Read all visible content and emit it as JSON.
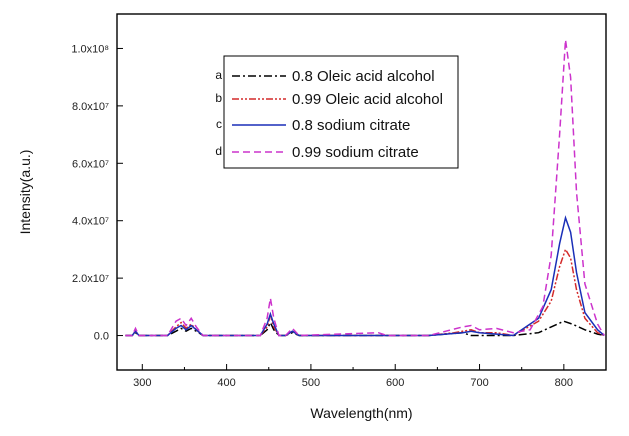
{
  "chart_data": {
    "type": "line",
    "title": "",
    "xlabel": "Wavelength(nm)",
    "ylabel": "Intensity(a.u.)",
    "xlim": [
      270,
      850
    ],
    "ylim": [
      -12000000.0,
      112000000.0
    ],
    "xticks": [
      300,
      400,
      500,
      600,
      700,
      800
    ],
    "yticks": [
      {
        "value": 0,
        "label": "0.0"
      },
      {
        "value": 20000000.0,
        "label": "2.0x10⁷"
      },
      {
        "value": 40000000.0,
        "label": "4.0x10⁷"
      },
      {
        "value": 60000000.0,
        "label": "6.0x10⁷"
      },
      {
        "value": 80000000.0,
        "label": "8.0x10⁷"
      },
      {
        "value": 100000000.0,
        "label": "1.0x10⁸"
      }
    ],
    "legend_position": "top-center",
    "series": [
      {
        "id": "a",
        "name": "0.8 Oleic acid alcohol",
        "color": "#000000",
        "dash": "dashdot",
        "points": [
          [
            280,
            0
          ],
          [
            288,
            0
          ],
          [
            292,
            1000000.0
          ],
          [
            296,
            0
          ],
          [
            330,
            0
          ],
          [
            340,
            1500000.0
          ],
          [
            346,
            2500000.0
          ],
          [
            352,
            1500000.0
          ],
          [
            358,
            2500000.0
          ],
          [
            364,
            1500000.0
          ],
          [
            372,
            0
          ],
          [
            440,
            0
          ],
          [
            448,
            2000000.0
          ],
          [
            452,
            4500000.0
          ],
          [
            456,
            2000000.0
          ],
          [
            462,
            0
          ],
          [
            470,
            0
          ],
          [
            478,
            1000000.0
          ],
          [
            486,
            0
          ],
          [
            580,
            0
          ],
          [
            640,
            0
          ],
          [
            680,
            1000000.0
          ],
          [
            690,
            0
          ],
          [
            740,
            0
          ],
          [
            770,
            1000000.0
          ],
          [
            785,
            3000000.0
          ],
          [
            800,
            5000000.0
          ],
          [
            810,
            4000000.0
          ],
          [
            825,
            2000000.0
          ],
          [
            840,
            500000.0
          ],
          [
            848,
            0
          ]
        ]
      },
      {
        "id": "b",
        "name": "0.99 Oleic acid alcohol",
        "color": "#d42a2a",
        "dash": "dashdotdot",
        "points": [
          [
            280,
            0
          ],
          [
            288,
            0
          ],
          [
            292,
            1500000.0
          ],
          [
            296,
            0
          ],
          [
            330,
            0
          ],
          [
            340,
            3000000.0
          ],
          [
            346,
            4500000.0
          ],
          [
            352,
            2500000.0
          ],
          [
            358,
            4000000.0
          ],
          [
            364,
            2000000.0
          ],
          [
            372,
            0
          ],
          [
            440,
            0
          ],
          [
            448,
            3000000.0
          ],
          [
            452,
            7000000.0
          ],
          [
            456,
            3000000.0
          ],
          [
            462,
            0
          ],
          [
            470,
            0
          ],
          [
            478,
            1500000.0
          ],
          [
            486,
            0
          ],
          [
            580,
            0
          ],
          [
            640,
            0
          ],
          [
            670,
            1000000.0
          ],
          [
            690,
            2000000.0
          ],
          [
            700,
            1000000.0
          ],
          [
            720,
            1000000.0
          ],
          [
            740,
            0
          ],
          [
            770,
            5000000.0
          ],
          [
            785,
            12000000.0
          ],
          [
            795,
            24000000.0
          ],
          [
            802,
            30000000.0
          ],
          [
            808,
            27000000.0
          ],
          [
            815,
            16000000.0
          ],
          [
            825,
            6000000.0
          ],
          [
            840,
            1000000.0
          ],
          [
            848,
            0
          ]
        ]
      },
      {
        "id": "c",
        "name": "0.8 sodium citrate",
        "color": "#1a2fb8",
        "dash": "solid",
        "points": [
          [
            280,
            0
          ],
          [
            288,
            0
          ],
          [
            292,
            1500000.0
          ],
          [
            296,
            0
          ],
          [
            330,
            0
          ],
          [
            340,
            2500000.0
          ],
          [
            346,
            3500000.0
          ],
          [
            352,
            2000000.0
          ],
          [
            358,
            3500000.0
          ],
          [
            364,
            2000000.0
          ],
          [
            372,
            0
          ],
          [
            440,
            0
          ],
          [
            448,
            4000000.0
          ],
          [
            452,
            7500000.0
          ],
          [
            456,
            4000000.0
          ],
          [
            462,
            0
          ],
          [
            470,
            0
          ],
          [
            478,
            1500000.0
          ],
          [
            486,
            0
          ],
          [
            580,
            0
          ],
          [
            640,
            0
          ],
          [
            680,
            1000000.0
          ],
          [
            690,
            1500000.0
          ],
          [
            700,
            1000000.0
          ],
          [
            740,
            0
          ],
          [
            770,
            6000000.0
          ],
          [
            785,
            16000000.0
          ],
          [
            795,
            32000000.0
          ],
          [
            802,
            41000000.0
          ],
          [
            808,
            36000000.0
          ],
          [
            815,
            22000000.0
          ],
          [
            825,
            8000000.0
          ],
          [
            840,
            2000000.0
          ],
          [
            848,
            0
          ]
        ]
      },
      {
        "id": "d",
        "name": "0.99 sodium citrate",
        "color": "#cc33cc",
        "dash": "dashed",
        "points": [
          [
            280,
            0
          ],
          [
            288,
            0
          ],
          [
            292,
            2500000.0
          ],
          [
            296,
            0
          ],
          [
            330,
            0
          ],
          [
            340,
            5000000.0
          ],
          [
            346,
            6000000.0
          ],
          [
            352,
            3500000.0
          ],
          [
            358,
            6000000.0
          ],
          [
            364,
            3000000.0
          ],
          [
            372,
            0
          ],
          [
            440,
            0
          ],
          [
            448,
            6000000.0
          ],
          [
            452,
            13000000.0
          ],
          [
            456,
            6000000.0
          ],
          [
            462,
            0
          ],
          [
            470,
            0
          ],
          [
            478,
            2500000.0
          ],
          [
            486,
            0
          ],
          [
            580,
            1000000.0
          ],
          [
            590,
            0
          ],
          [
            640,
            0
          ],
          [
            660,
            1500000.0
          ],
          [
            680,
            3000000.0
          ],
          [
            690,
            3500000.0
          ],
          [
            700,
            2000000.0
          ],
          [
            720,
            2500000.0
          ],
          [
            740,
            1000000.0
          ],
          [
            760,
            2000000.0
          ],
          [
            775,
            10000000.0
          ],
          [
            785,
            28000000.0
          ],
          [
            795,
            70000000.0
          ],
          [
            802,
            103000000.0
          ],
          [
            808,
            90000000.0
          ],
          [
            815,
            50000000.0
          ],
          [
            825,
            18000000.0
          ],
          [
            840,
            4000000.0
          ],
          [
            848,
            0
          ]
        ]
      }
    ]
  }
}
